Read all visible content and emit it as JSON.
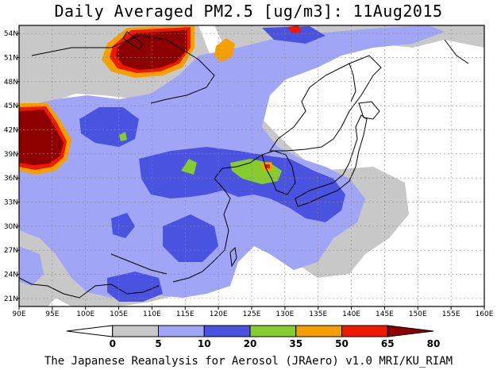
{
  "title": "Daily Averaged PM2.5 [ug/m3]: 11Aug2015",
  "footer": "The Japanese Reanalysis for Aerosol (JRAero) v1.0 MRI/KU_RIAM",
  "map": {
    "lon_range": [
      90,
      160
    ],
    "lat_range": [
      20,
      55
    ],
    "lon_ticks": [
      "90E",
      "95E",
      "100E",
      "105E",
      "110E",
      "115E",
      "120E",
      "125E",
      "130E",
      "135E",
      "140E",
      "145E",
      "150E",
      "155E",
      "160E"
    ],
    "lat_ticks": [
      "54N",
      "51N",
      "48N",
      "45N",
      "42N",
      "39N",
      "36N",
      "33N",
      "30N",
      "27N",
      "24N",
      "21N"
    ],
    "grid": "dashed"
  },
  "colorbar": {
    "levels": [
      "0",
      "5",
      "10",
      "20",
      "35",
      "50",
      "65",
      "80"
    ],
    "colors": [
      "#ffffff",
      "#c8c8c8",
      "#a0a6f5",
      "#4a52e0",
      "#86cc2e",
      "#f5a000",
      "#f01800",
      "#8c0000"
    ]
  }
}
